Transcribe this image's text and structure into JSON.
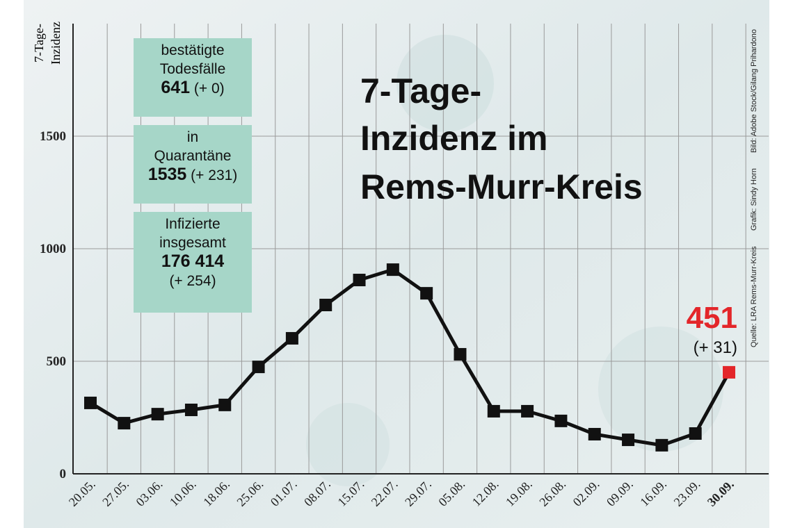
{
  "chart_data": {
    "type": "line",
    "title": [
      "7-Tage-",
      "Inzidenz im",
      "Rems-Murr-Kreis"
    ],
    "y_label": [
      "7-Tage-",
      "Inzidenz"
    ],
    "categories": [
      "20.05.",
      "27.05.",
      "03.06.",
      "10.06.",
      "18.06.",
      "25.06.",
      "01.07.",
      "08.07.",
      "15.07.",
      "22.07.",
      "29.07.",
      "05.08.",
      "12.08.",
      "19.08.",
      "26.08.",
      "02.09.",
      "09.09.",
      "16.09.",
      "23.09.",
      "30.09."
    ],
    "series": [
      {
        "color": "#111111",
        "highlight_color": "#e3262a",
        "values": [
          315,
          225,
          265,
          284,
          306,
          475,
          602,
          750,
          861,
          907,
          802,
          531,
          278,
          278,
          235,
          176,
          151,
          127,
          179,
          451
        ]
      }
    ],
    "last_value_label": "451",
    "last_change": "(+ 31)",
    "ylim": [
      0,
      2000
    ],
    "yticks": [
      0,
      500,
      1000,
      1500
    ],
    "grid": true,
    "boxes": [
      {
        "lines": [
          "bestätigte",
          "Todesfälle"
        ],
        "value": "641",
        "change": "(+ 0)"
      },
      {
        "lines": [
          "in",
          "Quarantäne"
        ],
        "value": "1535",
        "change": "(+ 231)"
      },
      {
        "lines": [
          "Infizierte",
          "insgesamt"
        ],
        "value": "176 414",
        "change": "(+ 254)"
      }
    ],
    "credits": [
      "Quelle: LRA Rems-Murr-Kreis",
      "Grafik: Sindy Horn",
      "Bild: Adobe Stock/Gilang Prihardono"
    ]
  }
}
